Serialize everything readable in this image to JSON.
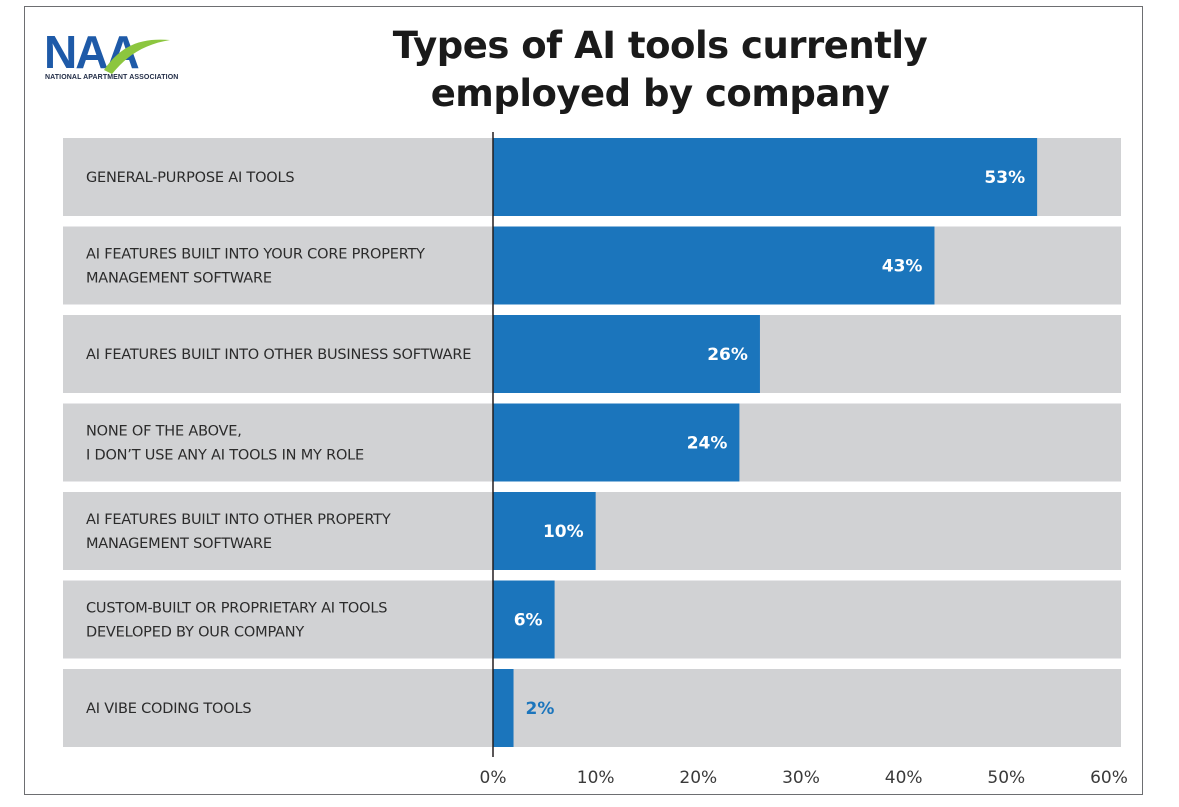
{
  "logo": {
    "text": "NAA",
    "subtext": "NATIONAL APARTMENT ASSOCIATION"
  },
  "colors": {
    "bar": "#1b75bc",
    "track": "#d1d2d4",
    "value_inside": "#ffffff",
    "value_outside": "#1b75bc",
    "axis": "#231f20"
  },
  "chart_data": {
    "type": "bar",
    "orientation": "horizontal",
    "title": "Types of AI tools currently employed by company",
    "title_lines": [
      "Types of AI tools currently",
      "employed by company"
    ],
    "categories": [
      [
        "GENERAL-PURPOSE AI TOOLS"
      ],
      [
        "AI FEATURES BUILT INTO YOUR CORE PROPERTY",
        "MANAGEMENT SOFTWARE"
      ],
      [
        "AI FEATURES BUILT INTO OTHER BUSINESS SOFTWARE"
      ],
      [
        "NONE OF THE ABOVE,",
        "I DON’T USE ANY AI TOOLS IN MY ROLE"
      ],
      [
        "AI FEATURES BUILT INTO OTHER PROPERTY",
        "MANAGEMENT SOFTWARE"
      ],
      [
        "CUSTOM-BUILT OR PROPRIETARY AI TOOLS",
        "DEVELOPED BY OUR COMPANY"
      ],
      [
        "AI VIBE CODING TOOLS"
      ]
    ],
    "values": [
      53,
      43,
      26,
      24,
      10,
      6,
      2
    ],
    "value_labels": [
      "53%",
      "43%",
      "26%",
      "24%",
      "10%",
      "6%",
      "2%"
    ],
    "xlim": [
      0,
      60
    ],
    "xticks": [
      0,
      10,
      20,
      30,
      40,
      50,
      60
    ],
    "xtick_labels": [
      "0%",
      "10%",
      "20%",
      "30%",
      "40%",
      "50%",
      "60%"
    ],
    "grid": false,
    "legend": "none"
  }
}
